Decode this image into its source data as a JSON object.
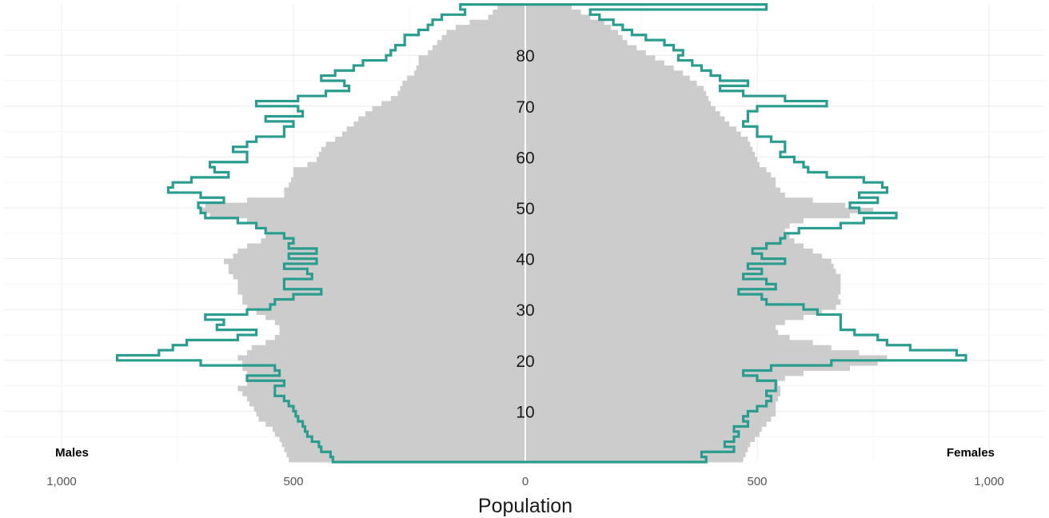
{
  "chart_data": {
    "type": "area",
    "title": "",
    "xlabel": "Population",
    "ylabel": "",
    "x_tick_labels": [
      "1,000",
      "500",
      "0",
      "500",
      "1,000"
    ],
    "x_tick_values": [
      -1000,
      -500,
      0,
      500,
      1000
    ],
    "y_ticks": [
      10,
      20,
      30,
      40,
      50,
      60,
      70,
      80
    ],
    "xlim": [
      -1100,
      1100
    ],
    "ylim": [
      0,
      90
    ],
    "grid": true,
    "side_labels": {
      "left": "Males",
      "right": "Females"
    },
    "colors": {
      "baseline": "#cccccc",
      "outline": "#2a9d8f",
      "grid": "#ebebeb"
    },
    "series": [
      {
        "role": "baseline_fill",
        "ages": [
          0,
          1,
          2,
          3,
          4,
          5,
          6,
          7,
          8,
          9,
          10,
          11,
          12,
          13,
          14,
          15,
          16,
          17,
          18,
          19,
          20,
          21,
          22,
          23,
          24,
          25,
          26,
          27,
          28,
          29,
          30,
          31,
          32,
          33,
          34,
          35,
          36,
          37,
          38,
          39,
          40,
          41,
          42,
          43,
          44,
          45,
          46,
          47,
          48,
          49,
          50,
          51,
          52,
          53,
          54,
          55,
          56,
          57,
          58,
          59,
          60,
          61,
          62,
          63,
          64,
          65,
          66,
          67,
          68,
          69,
          70,
          71,
          72,
          73,
          74,
          75,
          76,
          77,
          78,
          79,
          80,
          81,
          82,
          83,
          84,
          85,
          86,
          87,
          88,
          89
        ],
        "males": [
          510,
          515,
          520,
          525,
          530,
          540,
          545,
          560,
          575,
          580,
          585,
          595,
          600,
          610,
          620,
          600,
          600,
          600,
          610,
          610,
          620,
          600,
          590,
          560,
          540,
          530,
          530,
          540,
          560,
          580,
          600,
          610,
          610,
          620,
          620,
          620,
          630,
          640,
          640,
          650,
          630,
          620,
          600,
          570,
          560,
          560,
          580,
          600,
          680,
          700,
          690,
          600,
          520,
          520,
          510,
          505,
          500,
          500,
          470,
          450,
          445,
          440,
          430,
          410,
          395,
          385,
          370,
          360,
          345,
          330,
          310,
          290,
          275,
          270,
          265,
          255,
          240,
          235,
          230,
          230,
          210,
          200,
          190,
          180,
          170,
          150,
          120,
          80,
          70,
          60
        ],
        "females": [
          470,
          475,
          480,
          485,
          495,
          505,
          510,
          520,
          530,
          540,
          540,
          540,
          545,
          550,
          550,
          545,
          560,
          600,
          700,
          760,
          780,
          720,
          660,
          620,
          570,
          545,
          540,
          560,
          600,
          640,
          670,
          680,
          675,
          680,
          680,
          680,
          680,
          670,
          665,
          660,
          640,
          620,
          600,
          580,
          570,
          560,
          570,
          600,
          700,
          750,
          690,
          620,
          560,
          550,
          540,
          540,
          530,
          520,
          505,
          500,
          495,
          490,
          485,
          480,
          465,
          455,
          440,
          430,
          420,
          410,
          400,
          395,
          390,
          385,
          370,
          355,
          340,
          320,
          300,
          280,
          260,
          240,
          220,
          210,
          200,
          185,
          170,
          140,
          120,
          100
        ]
      },
      {
        "role": "comparison_outline",
        "ages": [
          0,
          1,
          2,
          3,
          4,
          5,
          6,
          7,
          8,
          9,
          10,
          11,
          12,
          13,
          14,
          15,
          16,
          17,
          18,
          19,
          20,
          21,
          22,
          23,
          24,
          25,
          26,
          27,
          28,
          29,
          30,
          31,
          32,
          33,
          34,
          35,
          36,
          37,
          38,
          39,
          40,
          41,
          42,
          43,
          44,
          45,
          46,
          47,
          48,
          49,
          50,
          51,
          52,
          53,
          54,
          55,
          56,
          57,
          58,
          59,
          60,
          61,
          62,
          63,
          64,
          65,
          66,
          67,
          68,
          69,
          70,
          71,
          72,
          73,
          74,
          75,
          76,
          77,
          78,
          79,
          80,
          81,
          82,
          83,
          84,
          85,
          86,
          87,
          88,
          89
        ],
        "males": [
          415,
          420,
          440,
          445,
          460,
          470,
          475,
          480,
          490,
          495,
          500,
          510,
          520,
          540,
          540,
          520,
          600,
          530,
          540,
          700,
          880,
          790,
          760,
          730,
          620,
          580,
          665,
          650,
          690,
          600,
          550,
          540,
          500,
          440,
          520,
          520,
          460,
          470,
          520,
          450,
          510,
          450,
          510,
          500,
          520,
          560,
          580,
          620,
          690,
          700,
          705,
          650,
          700,
          770,
          760,
          720,
          640,
          670,
          680,
          600,
          600,
          630,
          600,
          580,
          520,
          520,
          500,
          560,
          480,
          490,
          580,
          490,
          430,
          380,
          390,
          440,
          410,
          370,
          350,
          300,
          290,
          280,
          260,
          260,
          230,
          210,
          200,
          180,
          130,
          140
        ],
        "females": [
          390,
          380,
          450,
          430,
          450,
          460,
          450,
          480,
          470,
          480,
          500,
          520,
          530,
          520,
          540,
          540,
          500,
          470,
          530,
          660,
          950,
          930,
          830,
          780,
          760,
          710,
          680,
          680,
          680,
          630,
          600,
          520,
          510,
          460,
          540,
          520,
          470,
          510,
          480,
          560,
          510,
          490,
          520,
          550,
          560,
          590,
          680,
          730,
          800,
          720,
          700,
          760,
          720,
          780,
          770,
          730,
          650,
          610,
          600,
          580,
          550,
          560,
          560,
          530,
          500,
          500,
          470,
          480,
          480,
          500,
          650,
          560,
          470,
          420,
          480,
          420,
          400,
          380,
          360,
          330,
          340,
          320,
          300,
          260,
          230,
          210,
          190,
          160,
          140,
          520
        ]
      }
    ]
  }
}
